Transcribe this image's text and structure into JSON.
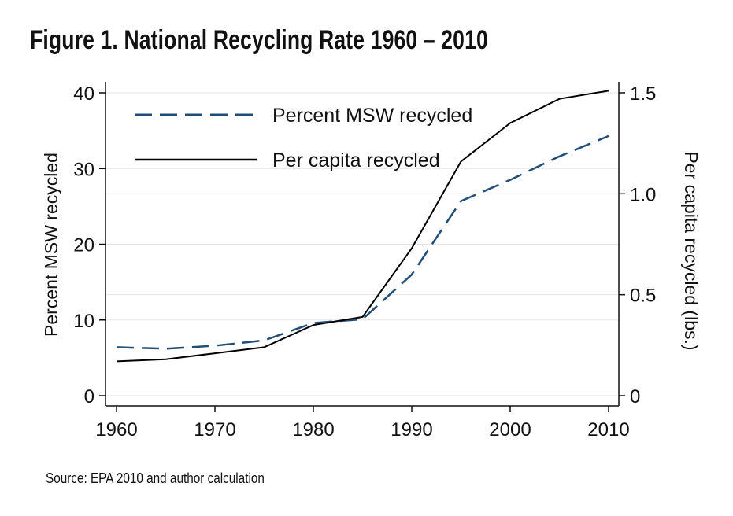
{
  "figure_title": "Figure 1.  National Recycling Rate 1960 – 2010",
  "source_note": "Source: EPA 2010 and author calculation",
  "colors": {
    "percent_series": "#1f4e79",
    "per_capita_series": "#000000",
    "grid": "#e6e6e6"
  },
  "chart_data": {
    "type": "line",
    "title": "Figure 1.  National Recycling Rate 1960 – 2010",
    "x": [
      1960,
      1965,
      1970,
      1975,
      1980,
      1985,
      1990,
      1995,
      2000,
      2005,
      2010
    ],
    "x_ticks": [
      "1960",
      "1970",
      "1980",
      "1990",
      "2000",
      "2010"
    ],
    "xlim": [
      1960,
      2010
    ],
    "ylabel_left": "Percent MSW recycled",
    "ylim_left": [
      0,
      40
    ],
    "y_left_ticks": [
      "0",
      "10",
      "20",
      "30",
      "40"
    ],
    "ylabel_right": "Per capita recycled (lbs.)",
    "ylim_right": [
      0,
      1.5
    ],
    "y_right_ticks": [
      "0",
      "0.5",
      "1.0",
      "1.5"
    ],
    "legend_position": "top-left",
    "grid": true,
    "series": [
      {
        "name": "Percent MSW recycled",
        "axis": "left",
        "style": "dashed",
        "values": [
          6.4,
          6.2,
          6.6,
          7.3,
          9.6,
          10.1,
          16.0,
          25.7,
          28.5,
          31.6,
          34.3
        ]
      },
      {
        "name": "Per capita recycled",
        "axis": "right",
        "style": "solid",
        "values": [
          0.17,
          0.18,
          0.21,
          0.24,
          0.35,
          0.39,
          0.73,
          1.16,
          1.35,
          1.47,
          1.51
        ]
      }
    ]
  }
}
